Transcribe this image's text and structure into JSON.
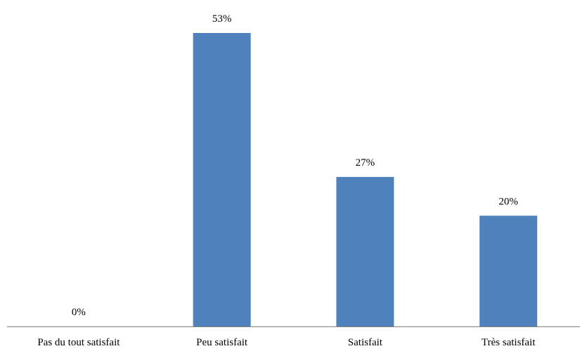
{
  "chart_data": {
    "type": "bar",
    "categories": [
      "Pas du tout satisfait",
      "Peu satisfait",
      "Satisfait",
      "Très satisfait"
    ],
    "values": [
      0,
      53,
      27,
      20
    ],
    "data_labels": [
      "0%",
      "53%",
      "27%",
      "20%"
    ],
    "title": "",
    "xlabel": "",
    "ylabel": "",
    "ylim": [
      0,
      53
    ],
    "grid": false,
    "legend": "none",
    "bar_color": "#4f81bd",
    "axis_color": "#7f7f7f"
  }
}
